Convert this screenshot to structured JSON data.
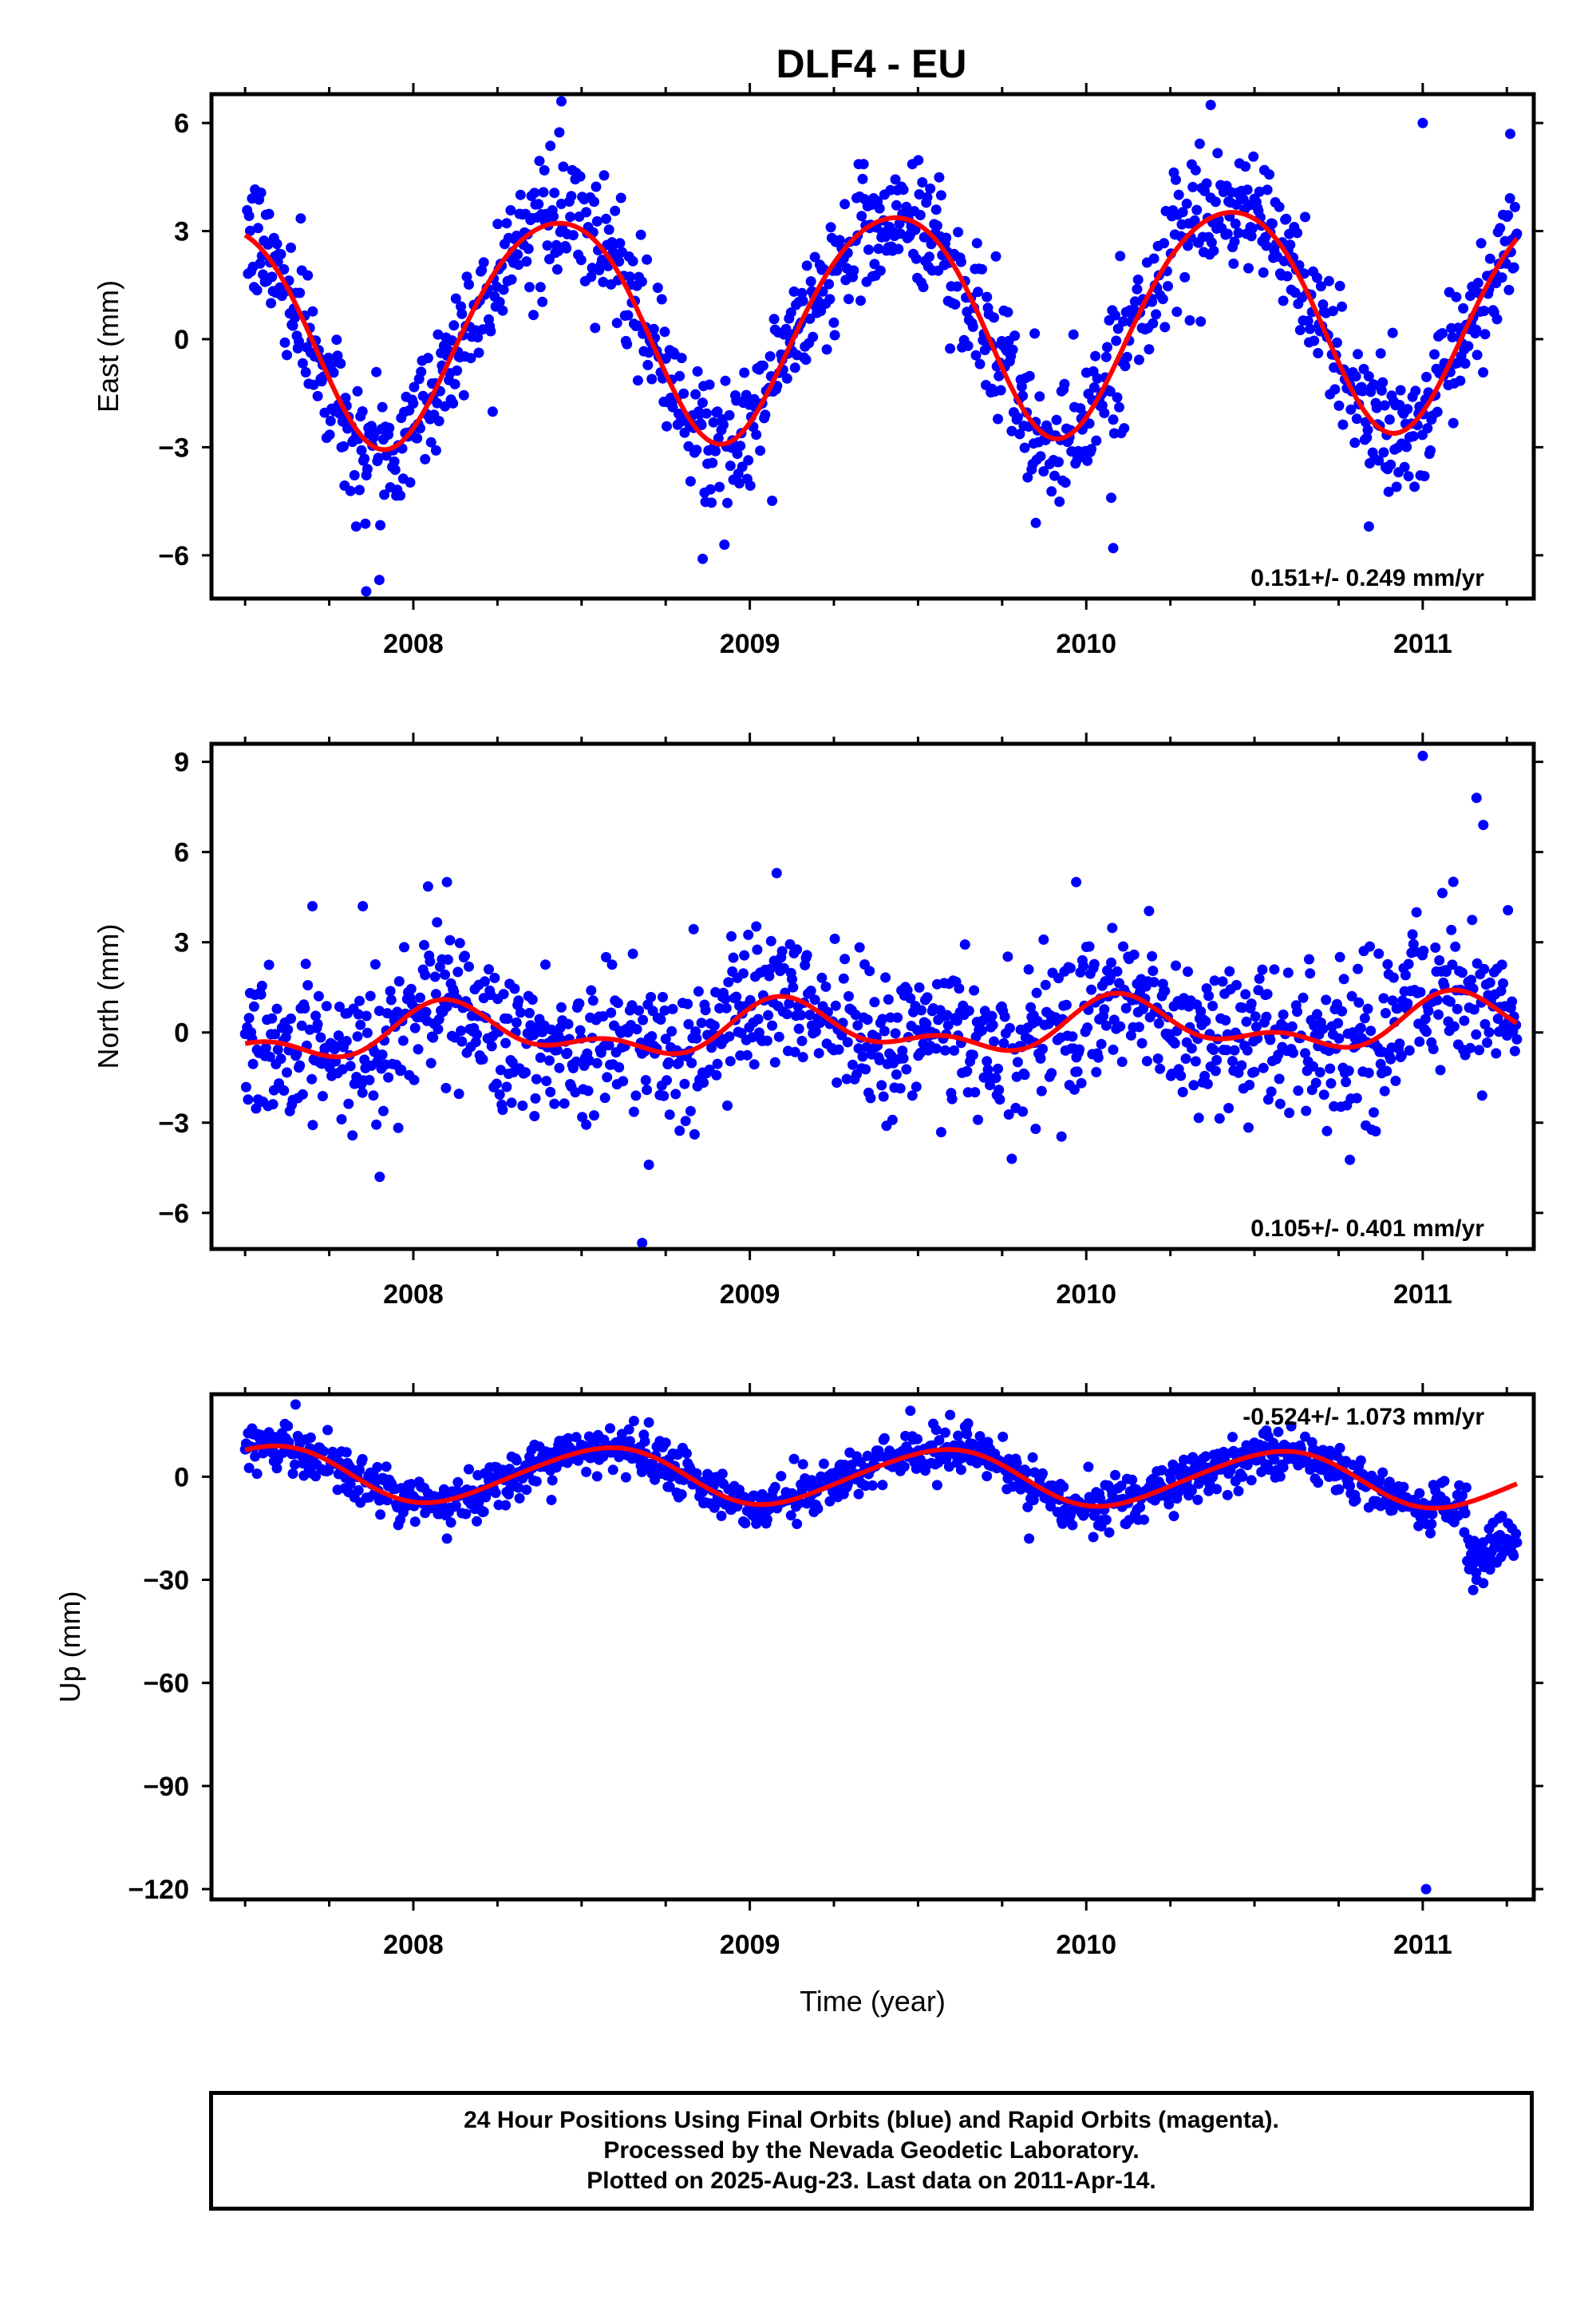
{
  "title": "DLF4 - EU",
  "colors": {
    "final_orbits": "#0000ff",
    "model_fit": "#ff0000",
    "axes": "#000000"
  },
  "chart_data": [
    {
      "type": "scatter",
      "panel": "east",
      "ylabel": "East (mm)",
      "xlabel": "",
      "xlim": [
        2007.4,
        2011.33
      ],
      "ylim": [
        -7.2,
        6.8
      ],
      "xticks": [
        2008,
        2009,
        2010,
        2011
      ],
      "yticks": [
        -6,
        -3,
        0,
        3,
        6
      ],
      "rate_label": "0.151+/- 0.249 mm/yr",
      "rate_position": "bottom-right",
      "grid": false,
      "fit": {
        "trend_mm_per_yr": 0.151,
        "annual_amplitude_mm": 3.1,
        "annual_peak_year_fraction": 0.42,
        "semiannual_amplitude_mm": 0.3,
        "semiannual_phase_year_fraction": 0.15,
        "reference_year": 2009.4,
        "offset_mm": 0.55
      },
      "scatter_sd_mm": 0.9,
      "x_start": 2007.5,
      "x_end": 2011.28,
      "outliers": [
        [
          2007.86,
          -7.0
        ],
        [
          2007.83,
          -5.2
        ],
        [
          2008.86,
          -6.1
        ],
        [
          2009.85,
          -5.1
        ],
        [
          2010.08,
          -5.8
        ],
        [
          2010.84,
          -5.2
        ],
        [
          2011.0,
          6.0
        ],
        [
          2010.37,
          6.5
        ],
        [
          2008.44,
          6.6
        ],
        [
          2011.26,
          5.7
        ]
      ]
    },
    {
      "type": "scatter",
      "panel": "north",
      "ylabel": "North (mm)",
      "xlabel": "",
      "xlim": [
        2007.4,
        2011.33
      ],
      "ylim": [
        -7.2,
        9.6
      ],
      "xticks": [
        2008,
        2009,
        2010,
        2011
      ],
      "yticks": [
        -6,
        -3,
        0,
        3,
        6,
        9
      ],
      "rate_label": "0.105+/- 0.401 mm/yr",
      "rate_position": "bottom-right",
      "grid": false,
      "fit": {
        "trend_mm_per_yr": 0.105,
        "annual_amplitude_mm": 0.7,
        "annual_peak_year_fraction": 0.12,
        "semiannual_amplitude_mm": 0.45,
        "semiannual_phase_year_fraction": 0.08,
        "reference_year": 2009.4,
        "offset_mm": 0.1
      },
      "scatter_sd_mm": 1.25,
      "x_start": 2007.5,
      "x_end": 2011.28,
      "outliers": [
        [
          2008.68,
          -7.0
        ],
        [
          2011.0,
          9.2
        ],
        [
          2011.16,
          7.8
        ],
        [
          2011.18,
          6.9
        ],
        [
          2008.1,
          5.0
        ],
        [
          2009.08,
          5.3
        ],
        [
          2009.97,
          5.0
        ],
        [
          2007.7,
          4.2
        ],
        [
          2007.85,
          4.2
        ],
        [
          2008.7,
          -4.4
        ],
        [
          2007.9,
          -4.8
        ]
      ]
    },
    {
      "type": "scatter",
      "panel": "up",
      "ylabel": "Up (mm)",
      "xlabel": "Time (year)",
      "xlim": [
        2007.4,
        2011.33
      ],
      "ylim": [
        -123,
        24
      ],
      "xticks": [
        2008,
        2009,
        2010,
        2011
      ],
      "yticks": [
        -120,
        -90,
        -60,
        -30,
        0
      ],
      "rate_label": "-0.524+/- 1.073 mm/yr",
      "rate_position": "top-right",
      "grid": false,
      "fit": {
        "trend_mm_per_yr": -0.524,
        "annual_amplitude_mm": 8.0,
        "annual_peak_year_fraction": 0.56,
        "semiannual_amplitude_mm": 0.8,
        "semiannual_phase_year_fraction": 0.2,
        "reference_year": 2009.4,
        "offset_mm": 0.0
      },
      "scatter_sd_mm": 3.6,
      "x_start": 2007.5,
      "x_end": 2011.28,
      "outliers": [
        [
          2011.01,
          -120
        ],
        [
          2007.65,
          21
        ],
        [
          2011.15,
          -33
        ],
        [
          2011.16,
          -30
        ],
        [
          2011.18,
          -31
        ],
        [
          2011.2,
          -27
        ],
        [
          2011.22,
          -25
        ],
        [
          2011.24,
          -22
        ],
        [
          2011.26,
          -20
        ],
        [
          2011.27,
          -23
        ],
        [
          2008.1,
          -18
        ],
        [
          2009.83,
          -18
        ]
      ]
    }
  ],
  "footer": {
    "line1": "24 Hour Positions Using Final Orbits (blue) and Rapid Orbits (magenta).",
    "line2": "Processed by the Nevada Geodetic Laboratory.",
    "line3": "Plotted on 2025-Aug-23. Last data on 2011-Apr-14."
  }
}
